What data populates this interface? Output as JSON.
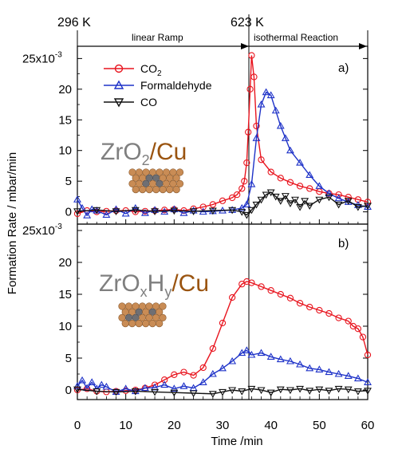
{
  "chart_data": [
    {
      "type": "line",
      "panel_label": "a)",
      "overlay_label": {
        "base": "ZrO",
        "sub": "2",
        "slash": "/",
        "metal": "Cu"
      },
      "xlabel": "Time /min",
      "ylabel": "Formation Rate / mbar/min",
      "ylim": [
        -2,
        27
      ],
      "y_ticks": [
        0,
        5,
        10,
        15,
        20,
        25
      ],
      "y_tick_labels": [
        "0",
        "5",
        "10",
        "15",
        "20",
        "25x10"
      ],
      "y_exponent": "-3",
      "top_annotations": {
        "temp_start": "296 K",
        "temp_end": "623 K",
        "phase_1": "linear Ramp",
        "phase_2": "isothermal Reaction"
      },
      "legend_position": "top-center",
      "series": [
        {
          "name": "CO",
          "name_sub": "2",
          "color": "#e8141e",
          "marker": "circle",
          "x": [
            0,
            2,
            4,
            6,
            8,
            10,
            12,
            14,
            16,
            18,
            20,
            22,
            24,
            26,
            28,
            30,
            32,
            33,
            34,
            34.5,
            35,
            35.3,
            35.7,
            36,
            36.5,
            37,
            38,
            40,
            42,
            44,
            46,
            48,
            50,
            52,
            54,
            56,
            58,
            60
          ],
          "y": [
            -0.3,
            0.2,
            0,
            0.1,
            0.2,
            0.2,
            0,
            0.1,
            0.2,
            0.3,
            0.4,
            0.2,
            0.5,
            0.8,
            1.2,
            1.8,
            2.3,
            2.8,
            3.8,
            5,
            8,
            13,
            20,
            25.5,
            22,
            14,
            8.5,
            6.5,
            5.5,
            4.8,
            4.2,
            3.8,
            3.3,
            3,
            2.8,
            2.4,
            2,
            1.6
          ]
        },
        {
          "name": "Formaldehyde",
          "color": "#1e32c8",
          "marker": "triangle-up",
          "x": [
            0,
            1,
            2,
            3,
            4,
            6,
            8,
            10,
            12,
            14,
            16,
            18,
            20,
            22,
            24,
            26,
            28,
            30,
            32,
            34,
            35,
            36,
            37,
            38,
            39,
            40,
            41,
            42,
            43,
            44,
            46,
            48,
            50,
            52,
            54,
            56,
            58,
            60
          ],
          "y": [
            2,
            0.6,
            -0.6,
            0.4,
            0.2,
            -0.5,
            0.4,
            -0.3,
            0.6,
            -0.2,
            0.3,
            0,
            0.4,
            -0.2,
            0.2,
            0,
            0.1,
            0.2,
            0.3,
            0.6,
            1.2,
            4.5,
            12,
            17.5,
            19.5,
            19,
            16.5,
            14,
            12,
            10,
            8,
            6,
            4.2,
            3,
            2.2,
            1.6,
            1.1,
            0.8
          ]
        },
        {
          "name": "CO",
          "color": "#111111",
          "marker": "triangle-down",
          "x": [
            0,
            4,
            8,
            12,
            16,
            20,
            24,
            28,
            32,
            34,
            35,
            36,
            37,
            38,
            39,
            40,
            41,
            42,
            43,
            44,
            45,
            46,
            47,
            48,
            50,
            52,
            54,
            56,
            58,
            60
          ],
          "y": [
            0.1,
            0.3,
            0.1,
            0.3,
            0.1,
            0.2,
            0.1,
            0.2,
            0.3,
            0,
            -0.5,
            0.3,
            1.2,
            2,
            2.8,
            3.2,
            2.5,
            1.8,
            2.6,
            1.4,
            2,
            0.8,
            1.8,
            1,
            2,
            2.4,
            1.2,
            1.8,
            0.8,
            1
          ]
        }
      ]
    },
    {
      "type": "line",
      "panel_label": "b)",
      "overlay_label": {
        "base": "ZrO",
        "sub1": "x",
        "mid": "H",
        "sub2": "y",
        "slash": "/",
        "metal": "Cu"
      },
      "xlabel": "Time /min",
      "ylabel": "Formation Rate / mbar/min",
      "xlim": [
        0,
        60
      ],
      "x_ticks": [
        0,
        10,
        20,
        30,
        40,
        50,
        60
      ],
      "ylim": [
        -1.5,
        26
      ],
      "y_ticks": [
        0,
        5,
        10,
        15,
        20,
        25
      ],
      "y_tick_labels": [
        "0",
        "5",
        "10",
        "15",
        "20",
        "25x10"
      ],
      "y_exponent": "-3",
      "series": [
        {
          "name": "CO",
          "name_sub": "2",
          "color": "#e8141e",
          "marker": "circle",
          "x": [
            0,
            2,
            4,
            6,
            8,
            10,
            12,
            14,
            16,
            18,
            20,
            22,
            24,
            26,
            28,
            30,
            32,
            34,
            35,
            36,
            38,
            40,
            42,
            44,
            46,
            48,
            50,
            52,
            54,
            56,
            57,
            58,
            59,
            60
          ],
          "y": [
            0,
            0.2,
            -0.2,
            -0.3,
            -0.2,
            -0.1,
            0,
            0.3,
            0.8,
            1.6,
            2.4,
            2.8,
            2.3,
            3.5,
            6.5,
            10.5,
            14.5,
            16.6,
            17,
            16.8,
            16.2,
            15.6,
            15,
            14.4,
            13.6,
            13,
            12.5,
            12,
            11.3,
            10.8,
            10,
            9.6,
            8.3,
            5.5
          ]
        },
        {
          "name": "Formaldehyde",
          "color": "#1e32c8",
          "marker": "triangle-up",
          "x": [
            0,
            1,
            2,
            3,
            4,
            5,
            6,
            8,
            10,
            12,
            14,
            16,
            18,
            20,
            22,
            24,
            26,
            28,
            30,
            32,
            34,
            35,
            36,
            38,
            40,
            42,
            44,
            46,
            48,
            50,
            52,
            54,
            56,
            58,
            60
          ],
          "y": [
            0.6,
            1.5,
            0.3,
            1.2,
            0.2,
            0.8,
            0.5,
            -0.3,
            0.2,
            -0.2,
            0.3,
            0.4,
            0.8,
            0.2,
            0.6,
            0.3,
            1.2,
            2.5,
            3.4,
            4.5,
            5.8,
            6.2,
            5.5,
            5.8,
            5.2,
            4.8,
            4.5,
            4,
            3.4,
            3.2,
            2.8,
            2.5,
            2.2,
            1.8,
            1.2
          ]
        },
        {
          "name": "CO",
          "color": "#111111",
          "marker": "triangle-down",
          "x": [
            0,
            4,
            8,
            12,
            16,
            20,
            24,
            28,
            30,
            32,
            34,
            36,
            38,
            40,
            42,
            44,
            46,
            48,
            50,
            52,
            54,
            56,
            58,
            60
          ],
          "y": [
            0.1,
            -0.2,
            -0.3,
            -0.2,
            -0.3,
            -0.4,
            -0.5,
            -0.6,
            -0.3,
            0,
            -0.2,
            0.2,
            0,
            -0.4,
            0.1,
            0,
            0.2,
            -0.1,
            0.1,
            -0.1,
            0.2,
            0.1,
            -0.2,
            -0.1
          ]
        }
      ]
    }
  ]
}
